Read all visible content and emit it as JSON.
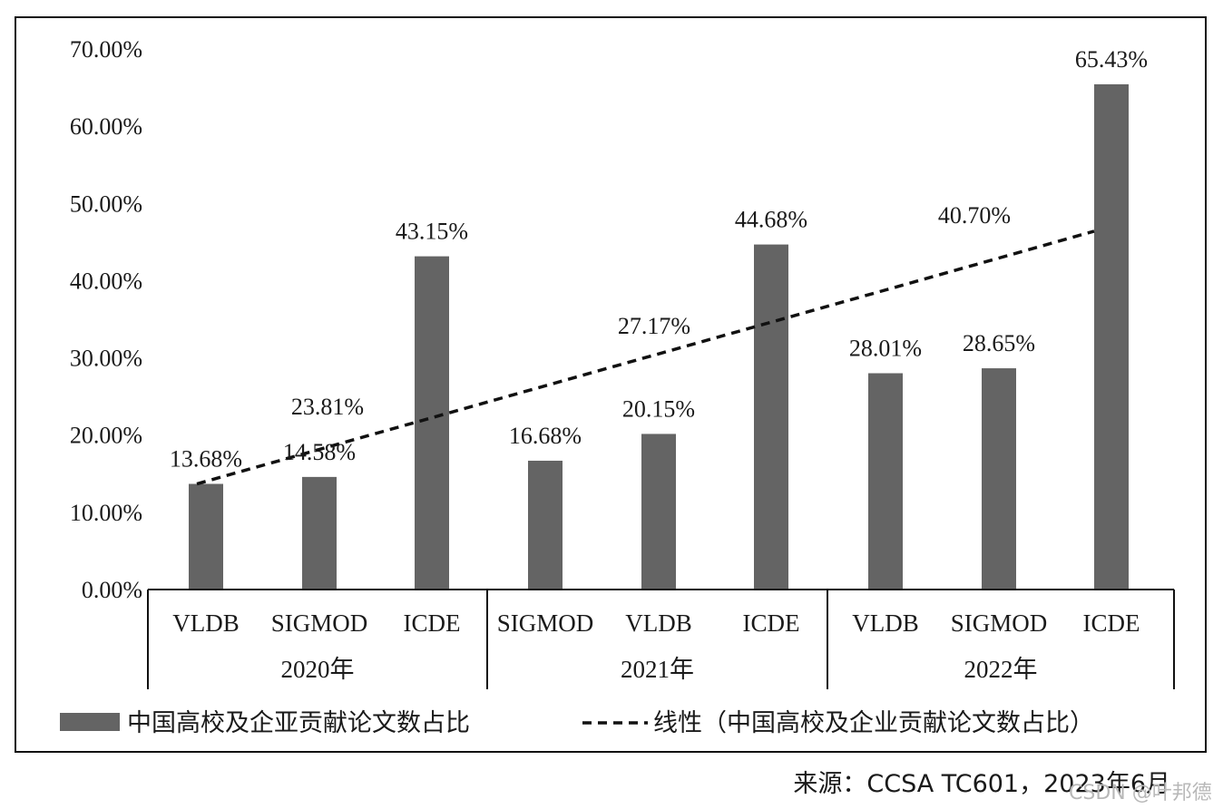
{
  "chart_data": {
    "type": "bar",
    "ylim": [
      0,
      70
    ],
    "y_ticks": [
      "0.00%",
      "10.00%",
      "20.00%",
      "30.00%",
      "40.00%",
      "50.00%",
      "60.00%",
      "70.00%"
    ],
    "groups": [
      {
        "label": "2020年",
        "categories": [
          "VLDB",
          "SIGMOD",
          "ICDE"
        ],
        "values": [
          13.68,
          14.58,
          43.15
        ],
        "value_labels": [
          "13.68%",
          "14.58%",
          "43.15%"
        ],
        "average_label": "23.81%"
      },
      {
        "label": "2021年",
        "categories": [
          "SIGMOD",
          "VLDB",
          "ICDE"
        ],
        "values": [
          16.68,
          20.15,
          44.68
        ],
        "value_labels": [
          "16.68%",
          "20.15%",
          "44.68%"
        ],
        "average_label": "27.17%"
      },
      {
        "label": "2022年",
        "categories": [
          "VLDB",
          "SIGMOD",
          "ICDE"
        ],
        "values": [
          28.01,
          28.65,
          65.43
        ],
        "value_labels": [
          "28.01%",
          "28.65%",
          "65.43%"
        ],
        "average_label": "40.70%"
      }
    ],
    "trendline": {
      "start_value": 13.68,
      "end_value": 46.4
    },
    "legend": [
      {
        "label": "中国高校及企亚贡献论文数占比",
        "kind": "bar"
      },
      {
        "label": "线性（中国高校及企业贡献论文数占比）",
        "kind": "dashed-line"
      }
    ],
    "legend_position": "bottom",
    "grid": false,
    "colors": {
      "bar": "#646464",
      "line": "#111111"
    }
  },
  "source_note": "来源：CCSA TC601，2023年6月",
  "watermark": "CSDN @叶邦德"
}
